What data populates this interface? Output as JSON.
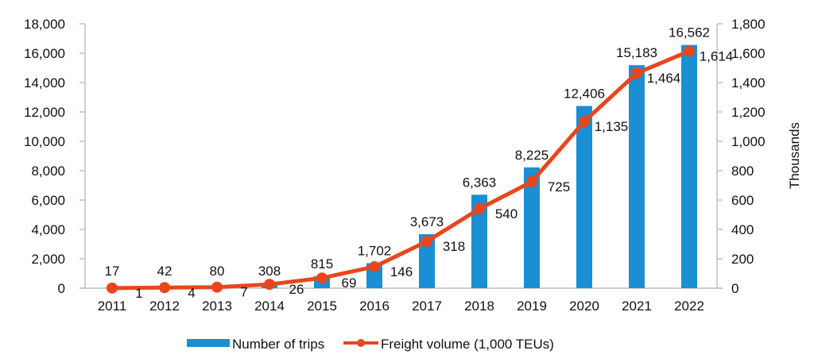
{
  "chart_data": {
    "type": "bar",
    "title": "",
    "xlabel": "",
    "ylabel": "",
    "y2label": "Thousands",
    "categories": [
      "2011",
      "2012",
      "2013",
      "2014",
      "2015",
      "2016",
      "2017",
      "2018",
      "2019",
      "2020",
      "2021",
      "2022"
    ],
    "series": [
      {
        "name": "Number of trips",
        "type": "bar",
        "axis": "left",
        "color": "#1a8fd4",
        "values": [
          17,
          42,
          80,
          308,
          815,
          1702,
          3673,
          6363,
          8225,
          12406,
          15183,
          16562
        ],
        "labels": [
          "17",
          "42",
          "80",
          "308",
          "815",
          "1,702",
          "3,673",
          "6,363",
          "8,225",
          "12,406",
          "15,183",
          "16,562"
        ]
      },
      {
        "name": "Freight volume (1,000 TEUs)",
        "type": "line",
        "axis": "right",
        "color": "#e8461e",
        "values": [
          1,
          4,
          7,
          26,
          69,
          146,
          318,
          540,
          725,
          1135,
          1464,
          1614
        ],
        "labels": [
          "1",
          "4",
          "7",
          "26",
          "69",
          "146",
          "318",
          "540",
          "725",
          "1,135",
          "1,464",
          "1,614"
        ]
      }
    ],
    "ylim": [
      0,
      18000
    ],
    "y2lim": [
      0,
      1800
    ],
    "yticks": [
      "0",
      "2,000",
      "4,000",
      "6,000",
      "8,000",
      "10,000",
      "12,000",
      "14,000",
      "16,000",
      "18,000"
    ],
    "y2ticks": [
      "0",
      "200",
      "400",
      "600",
      "800",
      "1,000",
      "1,200",
      "1,400",
      "1,600",
      "1,800"
    ],
    "grid": false,
    "legend": "bottom"
  }
}
